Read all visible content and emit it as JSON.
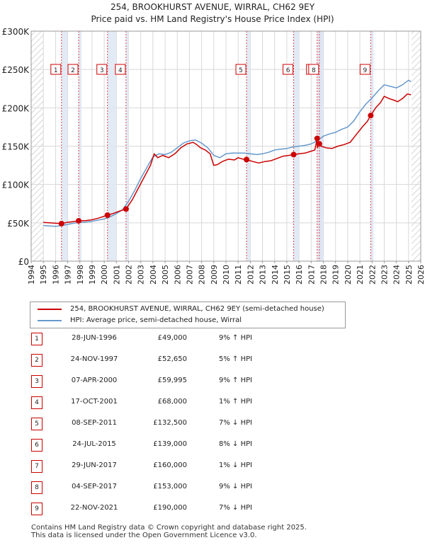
{
  "chart_data": {
    "type": "line",
    "title": "254, BROOKHURST AVENUE, WIRRAL, CH62 9EY",
    "subtitle": "Price paid vs. HM Land Registry's House Price Index (HPI)",
    "xlabel": "",
    "ylabel": "",
    "xlim": [
      1994,
      2026
    ],
    "ylim": [
      0,
      300000
    ],
    "x_ticks": [
      "1994",
      "1995",
      "1996",
      "1997",
      "1998",
      "1999",
      "2000",
      "2001",
      "2002",
      "2003",
      "2004",
      "2005",
      "2006",
      "2007",
      "2008",
      "2009",
      "2010",
      "2011",
      "2012",
      "2013",
      "2014",
      "2015",
      "2016",
      "2017",
      "2018",
      "2019",
      "2020",
      "2021",
      "2022",
      "2023",
      "2024",
      "2025",
      "2026"
    ],
    "y_ticks": [
      {
        "value": 0,
        "label": "£0"
      },
      {
        "value": 50000,
        "label": "£50K"
      },
      {
        "value": 100000,
        "label": "£100K"
      },
      {
        "value": 150000,
        "label": "£150K"
      },
      {
        "value": 200000,
        "label": "£200K"
      },
      {
        "value": 250000,
        "label": "£250K"
      },
      {
        "value": 300000,
        "label": "£300K"
      }
    ],
    "data_range": [
      1995.0,
      2025.25
    ],
    "colors": {
      "property": "#cc0000",
      "hpi": "#6699cc",
      "band": "#dde6f3",
      "grid": "#d8d8d8",
      "hatch": "#c8c8c8"
    },
    "series": [
      {
        "name": "254, BROOKHURST AVENUE, WIRRAL, CH62 9EY (semi-detached house)",
        "x": [
          1995.0,
          1995.5,
          1996.0,
          1996.49,
          1996.9,
          1997.4,
          1997.9,
          1998.5,
          1999.0,
          1999.5,
          2000.27,
          2000.7,
          2001.2,
          2001.79,
          2002.3,
          2002.8,
          2003.3,
          2003.8,
          2004.1,
          2004.4,
          2004.8,
          2005.3,
          2005.8,
          2006.3,
          2006.8,
          2007.3,
          2007.6,
          2007.9,
          2008.3,
          2008.7,
          2009.0,
          2009.3,
          2009.7,
          2010.2,
          2010.7,
          2011.0,
          2011.4,
          2011.69,
          2012.2,
          2012.7,
          2013.2,
          2013.7,
          2014.2,
          2014.7,
          2015.2,
          2015.56,
          2016.0,
          2016.5,
          2016.9,
          2017.3,
          2017.49,
          2017.5,
          2017.67,
          2017.8,
          2018.2,
          2018.7,
          2019.2,
          2019.7,
          2020.2,
          2020.7,
          2021.2,
          2021.6,
          2021.89,
          2022.3,
          2022.7,
          2023.0,
          2023.4,
          2023.8,
          2024.1,
          2024.5,
          2024.9,
          2025.2
        ],
        "values": [
          50500,
          50000,
          49500,
          49000,
          50500,
          51500,
          52650,
          53000,
          54000,
          56000,
          59995,
          62000,
          65000,
          68000,
          80000,
          95000,
          110000,
          125000,
          140000,
          135000,
          138000,
          135000,
          140000,
          148000,
          153000,
          155000,
          152000,
          148000,
          145000,
          140000,
          125000,
          126000,
          130000,
          133000,
          132000,
          135000,
          133000,
          132500,
          130000,
          128000,
          130000,
          131000,
          134000,
          137000,
          138000,
          139000,
          140000,
          141000,
          143000,
          145000,
          160000,
          148000,
          153000,
          150000,
          148000,
          147000,
          150000,
          152000,
          155000,
          165000,
          175000,
          182000,
          190000,
          200000,
          207000,
          215000,
          212000,
          210000,
          208000,
          212000,
          218000,
          217000
        ]
      },
      {
        "name": "HPI: Average price, semi-detached house, Wirral",
        "x": [
          1995.0,
          1995.5,
          1996.0,
          1996.5,
          1997.0,
          1997.5,
          1998.0,
          1998.5,
          1999.0,
          1999.5,
          2000.0,
          2000.5,
          2001.0,
          2001.5,
          2002.0,
          2002.5,
          2003.0,
          2003.5,
          2004.0,
          2004.5,
          2005.0,
          2005.5,
          2006.0,
          2006.5,
          2007.0,
          2007.5,
          2008.0,
          2008.5,
          2009.0,
          2009.5,
          2010.0,
          2010.5,
          2011.0,
          2011.5,
          2012.0,
          2012.5,
          2013.0,
          2013.5,
          2014.0,
          2014.5,
          2015.0,
          2015.5,
          2016.0,
          2016.5,
          2017.0,
          2017.5,
          2018.0,
          2018.5,
          2019.0,
          2019.5,
          2020.0,
          2020.5,
          2021.0,
          2021.5,
          2022.0,
          2022.5,
          2023.0,
          2023.5,
          2024.0,
          2024.5,
          2025.0,
          2025.2
        ],
        "values": [
          46500,
          46000,
          45500,
          46500,
          48000,
          49500,
          50500,
          51000,
          52000,
          53500,
          55000,
          58000,
          62000,
          67000,
          78000,
          92000,
          108000,
          122000,
          136000,
          140000,
          139000,
          142000,
          148000,
          154000,
          157000,
          158000,
          154000,
          148000,
          138000,
          135000,
          140000,
          141000,
          141000,
          141000,
          140000,
          139000,
          140000,
          142000,
          145000,
          146000,
          147000,
          149000,
          150000,
          151000,
          153000,
          157000,
          163000,
          166000,
          168000,
          172000,
          175000,
          183000,
          195000,
          205000,
          213000,
          222000,
          230000,
          228000,
          226000,
          230000,
          236000,
          234000
        ]
      }
    ],
    "sale_markers": [
      {
        "label": "1",
        "x": 1996.49,
        "value": 49000
      },
      {
        "label": "2",
        "x": 1997.9,
        "value": 52650
      },
      {
        "label": "3",
        "x": 2000.27,
        "value": 59995
      },
      {
        "label": "4",
        "x": 2001.79,
        "value": 68000
      },
      {
        "label": "5",
        "x": 2011.69,
        "value": 132500
      },
      {
        "label": "6",
        "x": 2015.56,
        "value": 139000
      },
      {
        "label": "7",
        "x": 2017.49,
        "value": 160000
      },
      {
        "label": "8",
        "x": 2017.67,
        "value": 153000
      },
      {
        "label": "9",
        "x": 2021.89,
        "value": 190000
      }
    ],
    "legend": {
      "placement": "bottom",
      "entries": [
        "254, BROOKHURST AVENUE, WIRRAL, CH62 9EY (semi-detached house)",
        "HPI: Average price, semi-detached house, Wirral"
      ]
    }
  },
  "sales_table": [
    {
      "num": "1",
      "date": "28-JUN-1996",
      "price": "£49,000",
      "hpi": "9% ↑ HPI"
    },
    {
      "num": "2",
      "date": "24-NOV-1997",
      "price": "£52,650",
      "hpi": "5% ↑ HPI"
    },
    {
      "num": "3",
      "date": "07-APR-2000",
      "price": "£59,995",
      "hpi": "9% ↑ HPI"
    },
    {
      "num": "4",
      "date": "17-OCT-2001",
      "price": "£68,000",
      "hpi": "1% ↑ HPI"
    },
    {
      "num": "5",
      "date": "08-SEP-2011",
      "price": "£132,500",
      "hpi": "7% ↓ HPI"
    },
    {
      "num": "6",
      "date": "24-JUL-2015",
      "price": "£139,000",
      "hpi": "8% ↓ HPI"
    },
    {
      "num": "7",
      "date": "29-JUN-2017",
      "price": "£160,000",
      "hpi": "1% ↓ HPI"
    },
    {
      "num": "8",
      "date": "04-SEP-2017",
      "price": "£153,000",
      "hpi": "9% ↓ HPI"
    },
    {
      "num": "9",
      "date": "22-NOV-2021",
      "price": "£190,000",
      "hpi": "7% ↓ HPI"
    }
  ],
  "footer": {
    "line1": "Contains HM Land Registry data © Crown copyright and database right 2025.",
    "line2": "This data is licensed under the Open Government Licence v3.0."
  }
}
